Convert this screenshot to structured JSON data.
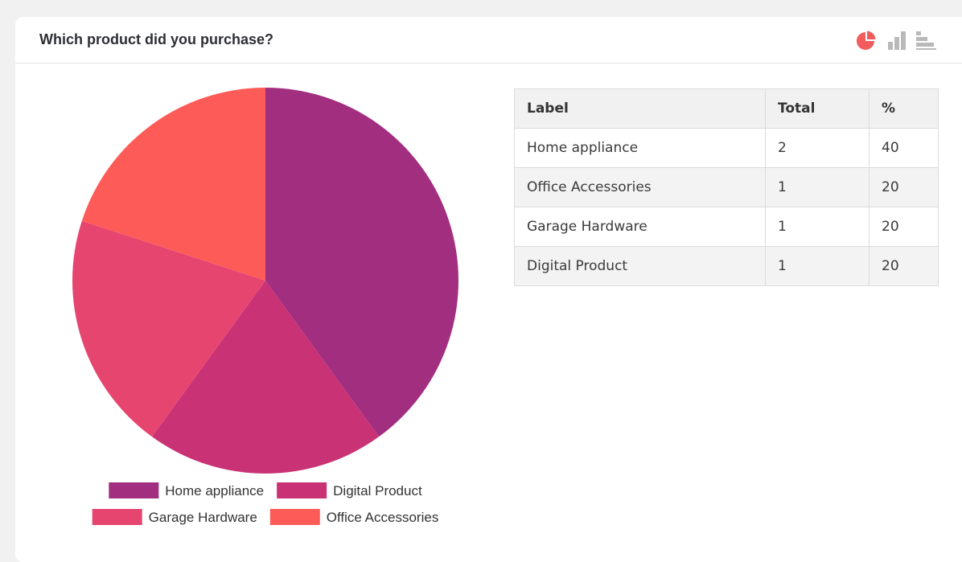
{
  "card": {
    "title": "Which product did you purchase?"
  },
  "icons": {
    "pie": "pie-chart-icon",
    "bar": "bar-chart-icon",
    "hbar": "horizontal-bar-chart-icon"
  },
  "colors": {
    "active_icon": "#f25c5c",
    "inactive_icon": "#b9b9b9"
  },
  "table": {
    "headers": [
      "Label",
      "Total",
      "%"
    ],
    "rows": [
      {
        "label": "Home appliance",
        "total": "2",
        "percent": "40"
      },
      {
        "label": "Office Accessories",
        "total": "1",
        "percent": "20"
      },
      {
        "label": "Garage Hardware",
        "total": "1",
        "percent": "20"
      },
      {
        "label": "Digital Product",
        "total": "1",
        "percent": "20"
      }
    ]
  },
  "chart_data": {
    "type": "pie",
    "title": "",
    "slices": [
      {
        "label": "Home appliance",
        "value": 2,
        "color": "#a22e80"
      },
      {
        "label": "Digital Product",
        "value": 1,
        "color": "#c93275"
      },
      {
        "label": "Garage Hardware",
        "value": 1,
        "color": "#e64570"
      },
      {
        "label": "Office Accessories",
        "value": 1,
        "color": "#fd5b58"
      }
    ],
    "legend": "bottom"
  }
}
